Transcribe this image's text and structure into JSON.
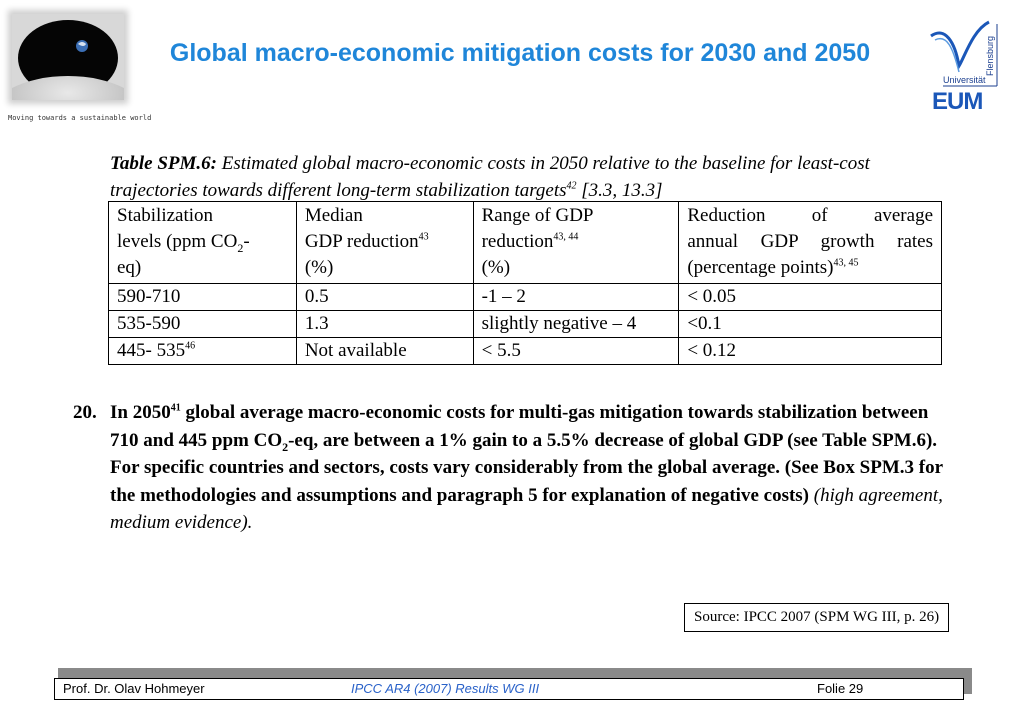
{
  "header": {
    "title": "Global macro-economic mitigation costs for 2030 and 2050",
    "tagline": "Moving towards a sustainable world",
    "university": {
      "word_universitat": "Universität",
      "word_flensburg": "Flensburg",
      "dept": "EUM"
    }
  },
  "colors": {
    "title": "#1f86d9",
    "logo_blue": "#1b57b8",
    "footer_center": "#2a62c9"
  },
  "icons": [
    "earth-from-moon-image",
    "university-flensburg-logo-icon"
  ],
  "table": {
    "caption": {
      "label": "Table SPM.6:",
      "text": "Estimated global macro-economic costs in 2050 relative to the baseline for least-cost trajectories towards different long-term stabilization targets",
      "sup": "42",
      "refs": "[3.3, 13.3]"
    },
    "headers": {
      "col1_a": "Stabilization",
      "col1_b": "levels (ppm CO",
      "col1_sub": "2",
      "col1_c": "-",
      "col1_d": "eq)",
      "col2_a": "Median",
      "col2_b": "GDP reduction",
      "col2_sup": "43",
      "col2_c": "(%)",
      "col3_a": "Range of GDP",
      "col3_b": "reduction",
      "col3_sup": "43, 44",
      "col3_c": "(%)",
      "col4_a": "Reduction of average",
      "col4_b": "annual GDP growth rates",
      "col4_c": "(percentage points)",
      "col4_sup": "43, 45"
    },
    "rows": [
      {
        "level": "590-710",
        "level_sup": "",
        "median": "0.5",
        "range": "-1 – 2",
        "growth": "< 0.05"
      },
      {
        "level": "535-590",
        "level_sup": "",
        "median": "1.3",
        "range": "slightly negative – 4",
        "growth": "<0.1"
      },
      {
        "level": "445- 535",
        "level_sup": "46",
        "median": "Not available",
        "range": "< 5.5",
        "growth": "< 0.12"
      }
    ]
  },
  "paragraph": {
    "number": "20.",
    "intro": "In 2050",
    "sup": "41",
    "part1": " global average macro-economic costs for multi-gas mitigation towards stabilization between 710 and 445 ppm CO",
    "sub": "2",
    "part2": "-eq, are between a 1% gain to a 5.5% decrease of global GDP (see Table SPM.6). For specific countries and sectors, costs vary considerably from the global average. (See Box SPM.3 for the methodologies and assumptions and paragraph 5 for explanation of negative costs)",
    "confidence": "(high agreement, medium evidence)."
  },
  "source": "Source: IPCC 2007 (SPM WG III, p. 26)",
  "footer": {
    "author": "Prof. Dr. Olav Hohmeyer",
    "center": "IPCC AR4 (2007) Results WG III",
    "folie": "Folie 29"
  }
}
